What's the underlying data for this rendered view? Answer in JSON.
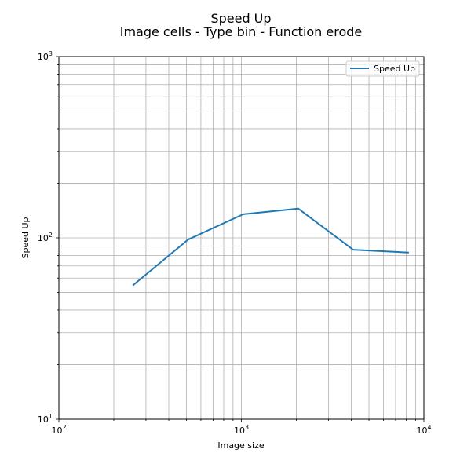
{
  "chart_data": {
    "type": "line",
    "title": "Speed Up",
    "subtitle": "Image cells - Type bin - Function erode",
    "xlabel": "Image size",
    "ylabel": "Speed Up",
    "xscale": "log",
    "yscale": "log",
    "xlim": [
      100,
      10000
    ],
    "ylim": [
      10,
      1000
    ],
    "x_ticks": [
      {
        "base": "10",
        "exp": "2",
        "value": 100
      },
      {
        "base": "10",
        "exp": "3",
        "value": 1000
      },
      {
        "base": "10",
        "exp": "4",
        "value": 10000
      }
    ],
    "y_ticks": [
      {
        "base": "10",
        "exp": "1",
        "value": 10
      },
      {
        "base": "10",
        "exp": "2",
        "value": 100
      },
      {
        "base": "10",
        "exp": "3",
        "value": 1000
      }
    ],
    "grid": true,
    "grid_minor": true,
    "legend_position": "top-right",
    "series": [
      {
        "name": "Speed Up",
        "color": "#1f77b4",
        "x": [
          256,
          512,
          1024,
          2048,
          4096,
          8192
        ],
        "y": [
          55,
          98,
          135,
          145,
          86,
          83
        ]
      }
    ]
  }
}
